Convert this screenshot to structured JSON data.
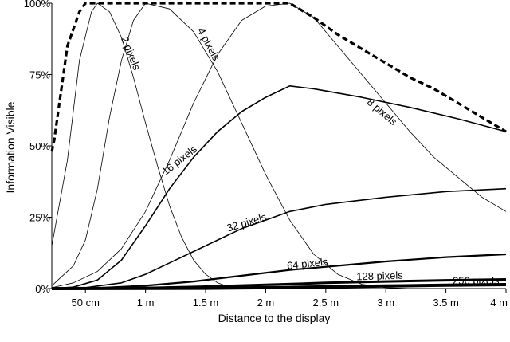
{
  "chart_data": {
    "type": "line",
    "xlabel": "Distance to the display",
    "ylabel": "Information Visible",
    "x_ticks": [
      0.5,
      1.0,
      1.5,
      2.0,
      2.5,
      3.0,
      3.5,
      4.0
    ],
    "x_tick_labels": [
      "50 cm",
      "1 m",
      "1.5 m",
      "2 m",
      "2.5 m",
      "3 m",
      "3.5 m",
      "4 m"
    ],
    "y_ticks": [
      0,
      25,
      50,
      75,
      100
    ],
    "y_tick_labels": [
      "0%",
      "25%",
      "50%",
      "75%",
      "100%"
    ],
    "xlim": [
      0.22,
      4.0
    ],
    "ylim": [
      0,
      100
    ],
    "grid": false,
    "legend": "none",
    "series": [
      {
        "name": "2 pixels",
        "label_anchor": [
          0.85,
          82
        ],
        "label_angle": 68,
        "points": [
          [
            0.22,
            15
          ],
          [
            0.35,
            45
          ],
          [
            0.45,
            80
          ],
          [
            0.55,
            97
          ],
          [
            0.6,
            100
          ],
          [
            0.7,
            97
          ],
          [
            0.8,
            88
          ],
          [
            0.9,
            74
          ],
          [
            1.0,
            58
          ],
          [
            1.1,
            43
          ],
          [
            1.2,
            29
          ],
          [
            1.3,
            18
          ],
          [
            1.4,
            10
          ],
          [
            1.5,
            5
          ],
          [
            1.6,
            2
          ],
          [
            1.7,
            0.5
          ],
          [
            1.8,
            0
          ],
          [
            4.0,
            0
          ]
        ]
      },
      {
        "name": "4 pixels",
        "label_anchor": [
          1.5,
          85
        ],
        "label_angle": 62,
        "points": [
          [
            0.22,
            1
          ],
          [
            0.4,
            8
          ],
          [
            0.5,
            17
          ],
          [
            0.6,
            35
          ],
          [
            0.7,
            60
          ],
          [
            0.8,
            80
          ],
          [
            0.9,
            94
          ],
          [
            1.0,
            100
          ],
          [
            1.2,
            98
          ],
          [
            1.4,
            90
          ],
          [
            1.6,
            76
          ],
          [
            1.8,
            58
          ],
          [
            2.0,
            40
          ],
          [
            2.2,
            24
          ],
          [
            2.4,
            12
          ],
          [
            2.6,
            5
          ],
          [
            2.8,
            1.5
          ],
          [
            3.0,
            0.3
          ],
          [
            3.2,
            0
          ],
          [
            4.0,
            0
          ]
        ]
      },
      {
        "name": "8 pixels",
        "label_anchor": [
          2.95,
          61
        ],
        "label_angle": 40,
        "points": [
          [
            0.22,
            0.3
          ],
          [
            0.4,
            2
          ],
          [
            0.6,
            6
          ],
          [
            0.8,
            14
          ],
          [
            1.0,
            27
          ],
          [
            1.2,
            45
          ],
          [
            1.4,
            65
          ],
          [
            1.6,
            82
          ],
          [
            1.8,
            94
          ],
          [
            2.0,
            99
          ],
          [
            2.2,
            100
          ],
          [
            2.4,
            95
          ],
          [
            2.6,
            85
          ],
          [
            2.8,
            75
          ],
          [
            3.0,
            65
          ],
          [
            3.2,
            55
          ],
          [
            3.4,
            46
          ],
          [
            3.6,
            39
          ],
          [
            3.8,
            32
          ],
          [
            4.0,
            27
          ]
        ]
      },
      {
        "name": "16 pixels",
        "label_anchor": [
          1.3,
          44
        ],
        "label_angle": -38,
        "points": [
          [
            0.22,
            0
          ],
          [
            0.4,
            0.5
          ],
          [
            0.6,
            3
          ],
          [
            0.8,
            10
          ],
          [
            1.0,
            22
          ],
          [
            1.2,
            35
          ],
          [
            1.4,
            46
          ],
          [
            1.6,
            55
          ],
          [
            1.8,
            62
          ],
          [
            2.0,
            67
          ],
          [
            2.2,
            71
          ],
          [
            2.4,
            70
          ],
          [
            2.8,
            67
          ],
          [
            3.2,
            63.5
          ],
          [
            3.6,
            59.5
          ],
          [
            4.0,
            55
          ]
        ]
      },
      {
        "name": "32 pixels",
        "label_anchor": [
          1.85,
          22
        ],
        "label_angle": -17,
        "points": [
          [
            0.22,
            0
          ],
          [
            0.5,
            0.3
          ],
          [
            0.8,
            2
          ],
          [
            1.0,
            5
          ],
          [
            1.2,
            9
          ],
          [
            1.4,
            13
          ],
          [
            1.6,
            17
          ],
          [
            1.8,
            21
          ],
          [
            2.0,
            24
          ],
          [
            2.2,
            27
          ],
          [
            2.5,
            29.5
          ],
          [
            3.0,
            32
          ],
          [
            3.5,
            34
          ],
          [
            4.0,
            35
          ]
        ]
      },
      {
        "name": "64 pixels",
        "label_anchor": [
          2.35,
          7.5
        ],
        "label_angle": -6,
        "points": [
          [
            0.22,
            0
          ],
          [
            0.6,
            0.2
          ],
          [
            1.0,
            1
          ],
          [
            1.4,
            2.5
          ],
          [
            1.8,
            4.5
          ],
          [
            2.2,
            6.5
          ],
          [
            2.6,
            8
          ],
          [
            3.0,
            9.5
          ],
          [
            3.5,
            11
          ],
          [
            4.0,
            12
          ]
        ]
      },
      {
        "name": "128 pixels",
        "label_anchor": [
          2.95,
          3.2
        ],
        "label_angle": -2,
        "points": [
          [
            0.22,
            0
          ],
          [
            1.0,
            0.2
          ],
          [
            1.5,
            0.7
          ],
          [
            2.0,
            1.3
          ],
          [
            2.5,
            2
          ],
          [
            3.0,
            2.5
          ],
          [
            3.5,
            2.9
          ],
          [
            4.0,
            3.2
          ]
        ]
      },
      {
        "name": "256 pixels",
        "label_anchor": [
          3.75,
          1.5
        ],
        "label_angle": 0,
        "points": [
          [
            0.22,
            0
          ],
          [
            1.5,
            0.1
          ],
          [
            2.0,
            0.3
          ],
          [
            2.5,
            0.6
          ],
          [
            3.0,
            0.9
          ],
          [
            3.5,
            1.2
          ],
          [
            4.0,
            1.4
          ]
        ]
      },
      {
        "name": "",
        "style": "dashed",
        "points": [
          [
            0.22,
            48
          ],
          [
            0.24,
            52
          ],
          [
            0.35,
            85
          ],
          [
            0.45,
            97
          ],
          [
            0.5,
            100
          ],
          [
            2.2,
            100
          ],
          [
            2.4,
            95
          ],
          [
            2.6,
            89
          ],
          [
            2.8,
            84
          ],
          [
            3.0,
            79
          ],
          [
            3.2,
            74
          ],
          [
            3.4,
            70
          ],
          [
            3.6,
            65
          ],
          [
            3.8,
            60
          ],
          [
            4.0,
            55
          ]
        ]
      }
    ]
  }
}
